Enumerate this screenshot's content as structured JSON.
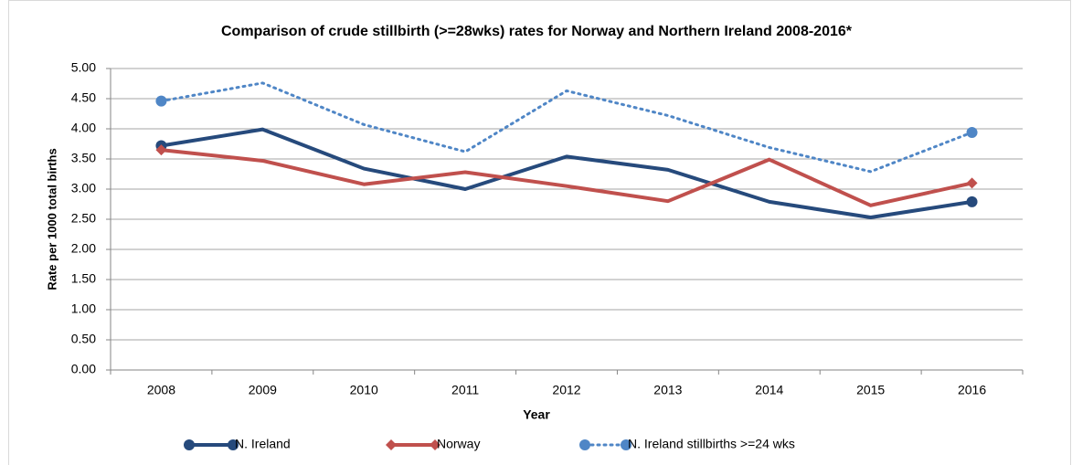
{
  "chart_data": {
    "type": "line",
    "title": "Comparison of crude stillbirth (>=28wks) rates for Norway and Northern Ireland 2008-2016*",
    "x_label": "Year",
    "y_label": "Rate per 1000 total births",
    "categories": [
      "2008",
      "2009",
      "2010",
      "2011",
      "2012",
      "2013",
      "2014",
      "2015",
      "2016"
    ],
    "series": [
      {
        "name": "N. Ireland",
        "color": "#264a7c",
        "line_style": "solid",
        "marker": "circle",
        "values": [
          3.72,
          3.99,
          3.34,
          3.0,
          3.54,
          3.32,
          2.79,
          2.53,
          2.79
        ]
      },
      {
        "name": "Norway",
        "color": "#c0504d",
        "line_style": "solid",
        "marker": "diamond",
        "values": [
          3.65,
          3.47,
          3.08,
          3.28,
          3.05,
          2.8,
          3.49,
          2.73,
          3.1
        ]
      },
      {
        "name": "N. Ireland stillbirths >=24 wks",
        "color": "#4f86c6",
        "line_style": "dotted",
        "marker": "circle",
        "values": [
          4.46,
          4.76,
          4.07,
          3.62,
          4.63,
          4.22,
          3.69,
          3.29,
          3.94
        ]
      }
    ],
    "ylim": [
      0,
      5
    ],
    "yticks": [
      {
        "value": 0,
        "label": "0.00"
      },
      {
        "value": 0.5,
        "label": "0.50"
      },
      {
        "value": 1,
        "label": "1.00"
      },
      {
        "value": 1.5,
        "label": "1.50"
      },
      {
        "value": 2,
        "label": "2.00"
      },
      {
        "value": 2.5,
        "label": "2.50"
      },
      {
        "value": 3,
        "label": "3.00"
      },
      {
        "value": 3.5,
        "label": "3.50"
      },
      {
        "value": 4,
        "label": "4.00"
      },
      {
        "value": 4.5,
        "label": "4.50"
      },
      {
        "value": 5,
        "label": "5.00"
      }
    ],
    "grid": true,
    "legend": "bottom"
  }
}
